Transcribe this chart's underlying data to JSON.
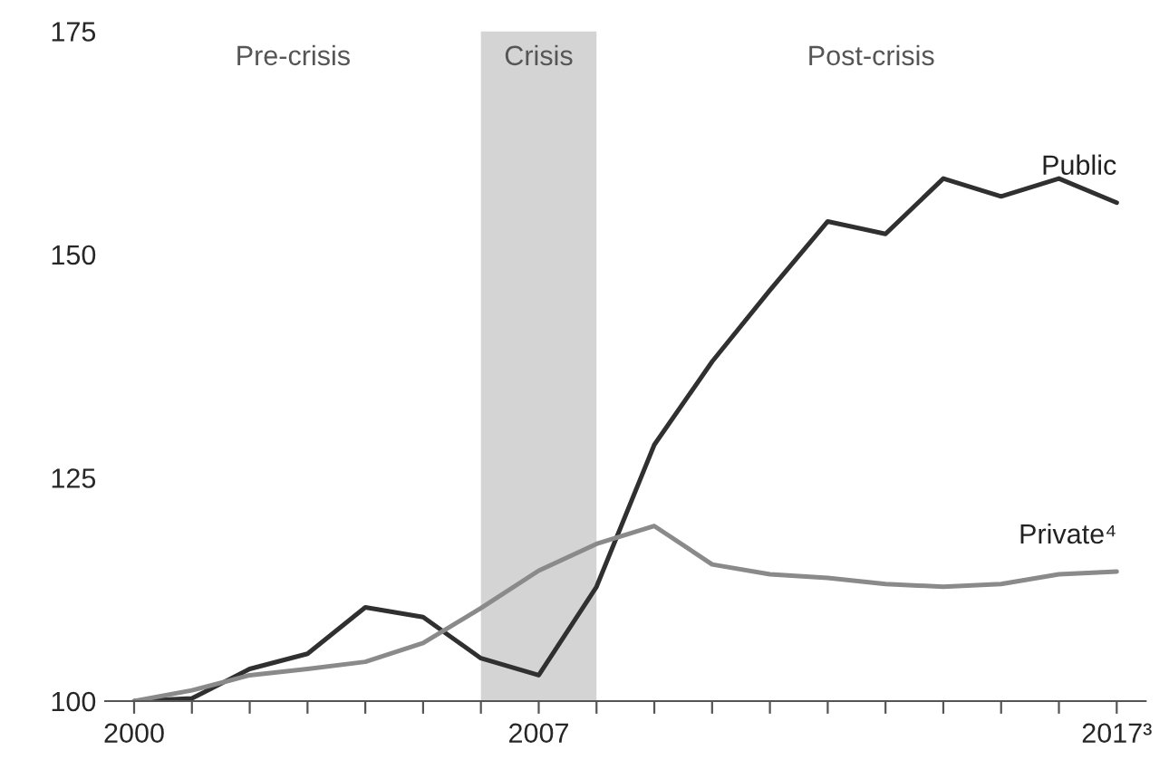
{
  "chart_data": {
    "type": "line",
    "x": [
      2000,
      2001,
      2002,
      2003,
      2004,
      2005,
      2006,
      2007,
      2008,
      2009,
      2010,
      2011,
      2012,
      2013,
      2014,
      2015,
      2016,
      2017
    ],
    "series": [
      {
        "name": "Public",
        "color": "#303030",
        "values": [
          100,
          100.3,
          103.6,
          105.3,
          110.5,
          109.4,
          104.8,
          102.9,
          112.8,
          128.7,
          138,
          146,
          153.7,
          152.3,
          158.5,
          156.5,
          158.5,
          155.8
        ]
      },
      {
        "name": "Private⁴",
        "color": "#8a8a8a",
        "values": [
          100,
          101.2,
          102.9,
          103.6,
          104.4,
          106.5,
          110.4,
          114.6,
          117.6,
          119.6,
          115.3,
          114.2,
          113.8,
          113.1,
          112.8,
          113.1,
          114.2,
          114.5
        ]
      }
    ],
    "xlim": [
      1999.5,
      2017.5
    ],
    "xticks": [
      {
        "value": 2000,
        "label": "2000"
      },
      {
        "value": 2001,
        "label": null
      },
      {
        "value": 2002,
        "label": null
      },
      {
        "value": 2003,
        "label": null
      },
      {
        "value": 2004,
        "label": null
      },
      {
        "value": 2005,
        "label": null
      },
      {
        "value": 2006,
        "label": null
      },
      {
        "value": 2007,
        "label": "2007"
      },
      {
        "value": 2008,
        "label": null
      },
      {
        "value": 2009,
        "label": null
      },
      {
        "value": 2010,
        "label": null
      },
      {
        "value": 2011,
        "label": null
      },
      {
        "value": 2012,
        "label": null
      },
      {
        "value": 2013,
        "label": null
      },
      {
        "value": 2014,
        "label": null
      },
      {
        "value": 2015,
        "label": null
      },
      {
        "value": 2016,
        "label": null
      },
      {
        "value": 2017,
        "label": "2017³"
      }
    ],
    "ylim": [
      100,
      175
    ],
    "yticks": [
      100,
      125,
      150,
      175
    ],
    "bands": [
      {
        "axis": "x",
        "from": 2006,
        "to": 2008,
        "label": "Crisis",
        "color": "#d4d4d4"
      }
    ],
    "annotations": [
      "Pre-crisis",
      "Post-crisis"
    ],
    "grid": false,
    "legend": false,
    "marker": "none",
    "line_style": "solid"
  }
}
